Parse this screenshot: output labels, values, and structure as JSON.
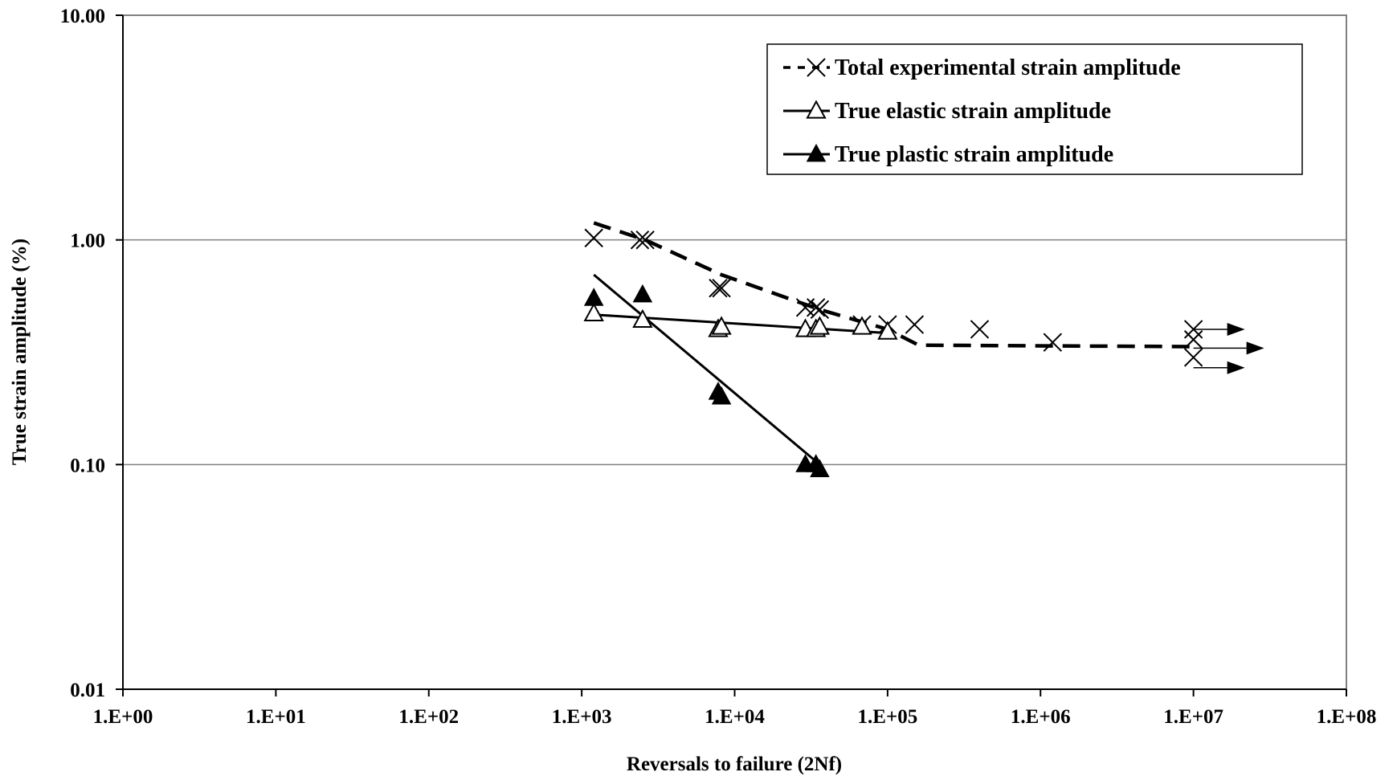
{
  "chart_data": {
    "type": "scatter",
    "xlabel": "Reversals to failure (2Nf)",
    "ylabel": "True strain amplitude (%)",
    "x_scale": "log",
    "y_scale": "log",
    "xlim": [
      1,
      100000000
    ],
    "ylim": [
      0.01,
      10
    ],
    "x_ticks": [
      {
        "value": 1,
        "label": "1.E+00"
      },
      {
        "value": 10,
        "label": "1.E+01"
      },
      {
        "value": 100,
        "label": "1.E+02"
      },
      {
        "value": 1000,
        "label": "1.E+03"
      },
      {
        "value": 10000,
        "label": "1.E+04"
      },
      {
        "value": 100000,
        "label": "1.E+05"
      },
      {
        "value": 1000000,
        "label": "1.E+06"
      },
      {
        "value": 10000000,
        "label": "1.E+07"
      },
      {
        "value": 100000000,
        "label": "1.E+08"
      }
    ],
    "y_ticks": [
      {
        "value": 0.01,
        "label": "0.01"
      },
      {
        "value": 0.1,
        "label": "0.10"
      },
      {
        "value": 1,
        "label": "1.00"
      },
      {
        "value": 10,
        "label": "10.00"
      }
    ],
    "grid": "horizontal major",
    "legend_position": "top-right",
    "series": [
      {
        "name": "Total experimental strain amplitude",
        "marker": "x",
        "line": "dashed",
        "points": [
          {
            "x": 1200,
            "y": 1.02
          },
          {
            "x": 2400,
            "y": 1.0
          },
          {
            "x": 2600,
            "y": 1.0
          },
          {
            "x": 7800,
            "y": 0.61
          },
          {
            "x": 8200,
            "y": 0.61
          },
          {
            "x": 29000,
            "y": 0.5
          },
          {
            "x": 34000,
            "y": 0.5
          },
          {
            "x": 36000,
            "y": 0.49
          },
          {
            "x": 68000,
            "y": 0.42
          },
          {
            "x": 100000,
            "y": 0.42
          },
          {
            "x": 150000,
            "y": 0.42
          },
          {
            "x": 400000,
            "y": 0.4
          },
          {
            "x": 1200000,
            "y": 0.35
          },
          {
            "x": 10000000,
            "y": 0.4
          },
          {
            "x": 10000000,
            "y": 0.36
          },
          {
            "x": 10000000,
            "y": 0.3
          }
        ],
        "trend": [
          {
            "x": 1200,
            "y": 1.19
          },
          {
            "x": 2600,
            "y": 1.0
          },
          {
            "x": 8200,
            "y": 0.7
          },
          {
            "x": 36000,
            "y": 0.49
          },
          {
            "x": 100000,
            "y": 0.4
          },
          {
            "x": 160000,
            "y": 0.34
          },
          {
            "x": 10000000,
            "y": 0.335
          }
        ]
      },
      {
        "name": "True elastic strain amplitude",
        "marker": "triangle-open",
        "line": "solid",
        "points": [
          {
            "x": 1200,
            "y": 0.47
          },
          {
            "x": 2500,
            "y": 0.44
          },
          {
            "x": 7800,
            "y": 0.4
          },
          {
            "x": 8200,
            "y": 0.41
          },
          {
            "x": 29000,
            "y": 0.4
          },
          {
            "x": 34000,
            "y": 0.4
          },
          {
            "x": 36000,
            "y": 0.41
          },
          {
            "x": 68000,
            "y": 0.41
          },
          {
            "x": 100000,
            "y": 0.39
          }
        ],
        "trend": [
          {
            "x": 1200,
            "y": 0.465
          },
          {
            "x": 100000,
            "y": 0.385
          }
        ]
      },
      {
        "name": "True plastic strain amplitude",
        "marker": "triangle-filled",
        "line": "solid",
        "points": [
          {
            "x": 1200,
            "y": 0.55
          },
          {
            "x": 2500,
            "y": 0.57
          },
          {
            "x": 7800,
            "y": 0.21
          },
          {
            "x": 8200,
            "y": 0.2
          },
          {
            "x": 29000,
            "y": 0.1
          },
          {
            "x": 34000,
            "y": 0.1
          },
          {
            "x": 36000,
            "y": 0.095
          }
        ],
        "trend": [
          {
            "x": 1200,
            "y": 0.7
          },
          {
            "x": 36000,
            "y": 0.1
          }
        ]
      }
    ],
    "runouts": [
      {
        "x": 10000000,
        "y": 0.4
      },
      {
        "x": 10000000,
        "y": 0.33
      },
      {
        "x": 10000000,
        "y": 0.27
      }
    ]
  }
}
